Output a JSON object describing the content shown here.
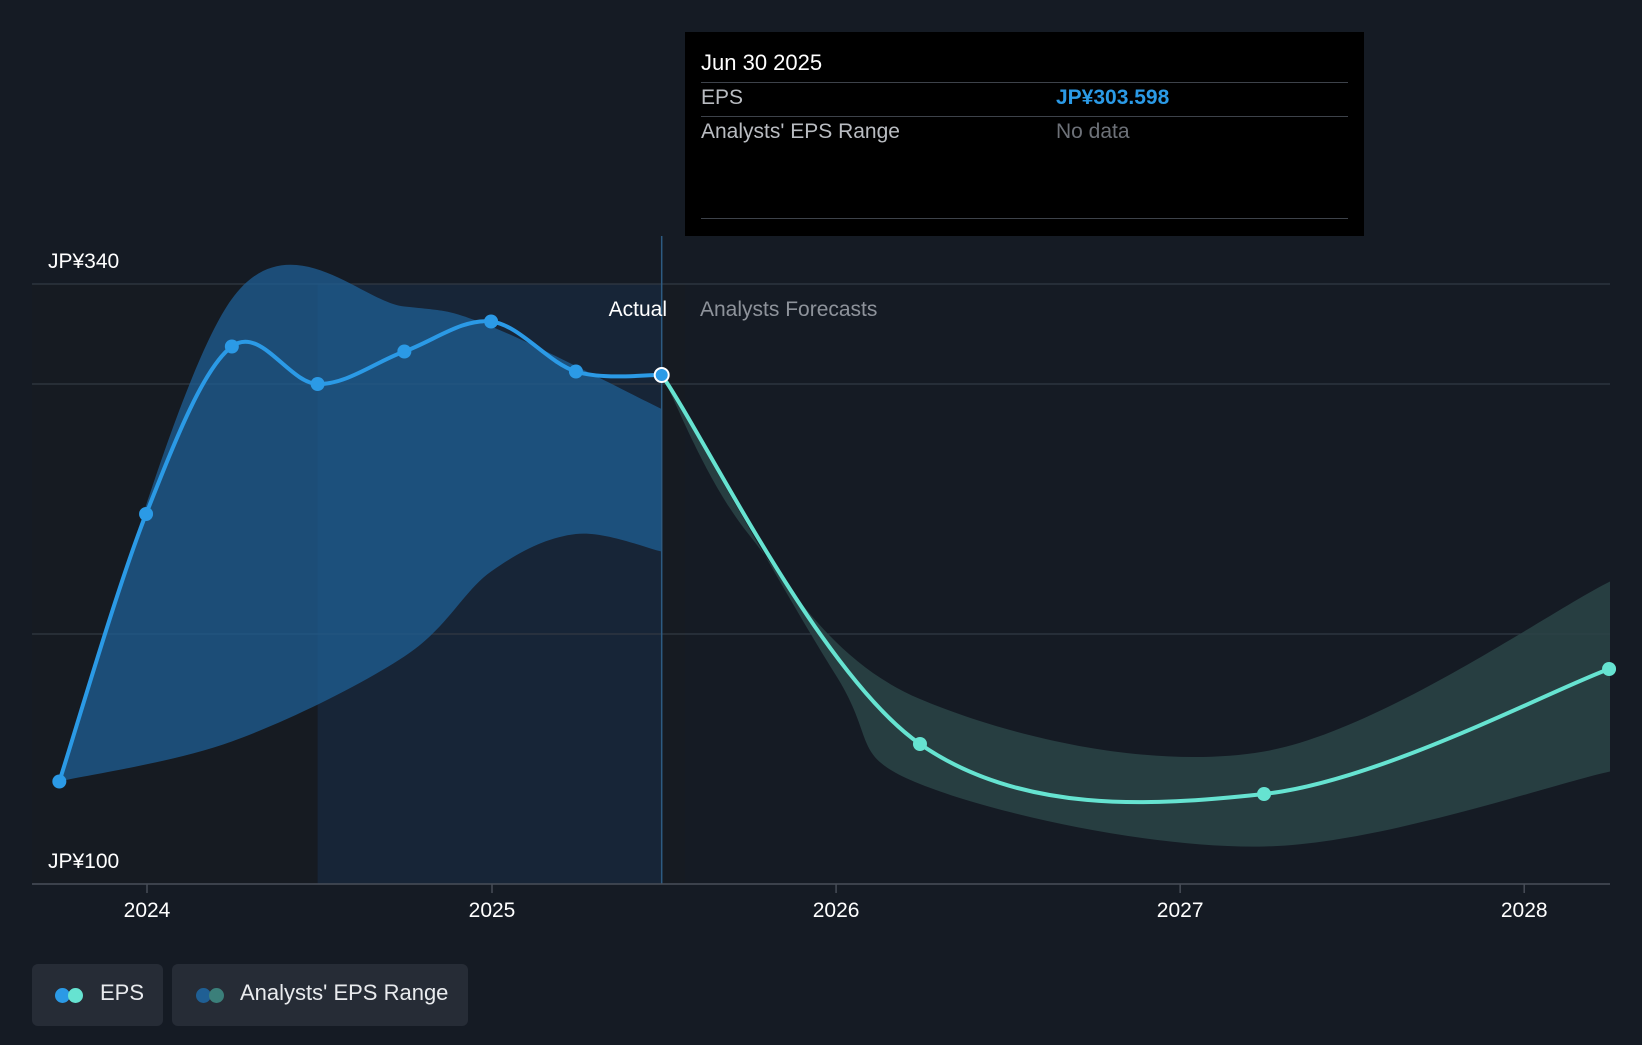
{
  "tooltip": {
    "date": "Jun 30 2025",
    "eps_label": "EPS",
    "eps_value": "JP¥303.598",
    "range_label": "Analysts' EPS Range",
    "range_value": "No data"
  },
  "labels": {
    "actual": "Actual",
    "forecast": "Analysts Forecasts"
  },
  "legend": {
    "eps": "EPS",
    "range": "Analysts' EPS Range"
  },
  "colors": {
    "background": "#151b24",
    "eps_actual": "#2b9ae6",
    "eps_forecast": "#66e3d1",
    "range_actual": "#1f5f94",
    "range_forecast": "#2a4447",
    "highlight": "#172537"
  },
  "chart_data": {
    "type": "line",
    "y_axis": {
      "min": 100,
      "max": 340,
      "tick_labels": [
        "JP¥340",
        "JP¥100"
      ],
      "gridlines": [
        100,
        200,
        300,
        340
      ]
    },
    "x_axis": {
      "tick_labels": [
        "2024",
        "2025",
        "2026",
        "2027",
        "2028"
      ],
      "range": [
        "2023-09-01",
        "2028-04-01"
      ]
    },
    "divider_date": "2025-06-30",
    "highlight_start": "2024-06-30",
    "series": [
      {
        "name": "EPS",
        "kind": "actual",
        "points": [
          {
            "x": "2023-09-30",
            "y": 141
          },
          {
            "x": "2023-12-31",
            "y": 248
          },
          {
            "x": "2024-03-31",
            "y": 315
          },
          {
            "x": "2024-06-30",
            "y": 300
          },
          {
            "x": "2024-09-30",
            "y": 313
          },
          {
            "x": "2024-12-31",
            "y": 325
          },
          {
            "x": "2025-03-31",
            "y": 305
          },
          {
            "x": "2025-06-30",
            "y": 303.598
          }
        ]
      },
      {
        "name": "EPS",
        "kind": "forecast",
        "points": [
          {
            "x": "2025-06-30",
            "y": 303.598
          },
          {
            "x": "2026-03-31",
            "y": 156
          },
          {
            "x": "2027-03-31",
            "y": 136
          },
          {
            "x": "2028-03-31",
            "y": 186
          }
        ]
      }
    ],
    "ranges": [
      {
        "name": "Analysts' EPS Range",
        "kind": "actual",
        "upper": [
          {
            "x": "2023-09-30",
            "y": 141
          },
          {
            "x": "2024-03-31",
            "y": 334
          },
          {
            "x": "2024-09-30",
            "y": 331
          },
          {
            "x": "2024-12-31",
            "y": 323
          },
          {
            "x": "2025-06-30",
            "y": 290
          }
        ],
        "lower": [
          {
            "x": "2023-09-30",
            "y": 141
          },
          {
            "x": "2024-03-31",
            "y": 157
          },
          {
            "x": "2024-09-30",
            "y": 191
          },
          {
            "x": "2024-12-31",
            "y": 225
          },
          {
            "x": "2025-03-31",
            "y": 240
          },
          {
            "x": "2025-06-30",
            "y": 233
          }
        ]
      },
      {
        "name": "Analysts' EPS Range",
        "kind": "forecast",
        "upper": [
          {
            "x": "2025-06-30",
            "y": 303.598
          },
          {
            "x": "2025-09-30",
            "y": 240
          },
          {
            "x": "2026-03-31",
            "y": 174
          },
          {
            "x": "2027-03-31",
            "y": 153
          },
          {
            "x": "2028-04-01",
            "y": 221
          }
        ],
        "lower": [
          {
            "x": "2025-06-30",
            "y": 303.598
          },
          {
            "x": "2025-12-31",
            "y": 184
          },
          {
            "x": "2026-03-31",
            "y": 140
          },
          {
            "x": "2027-03-31",
            "y": 115
          },
          {
            "x": "2028-04-01",
            "y": 145
          }
        ]
      }
    ]
  }
}
